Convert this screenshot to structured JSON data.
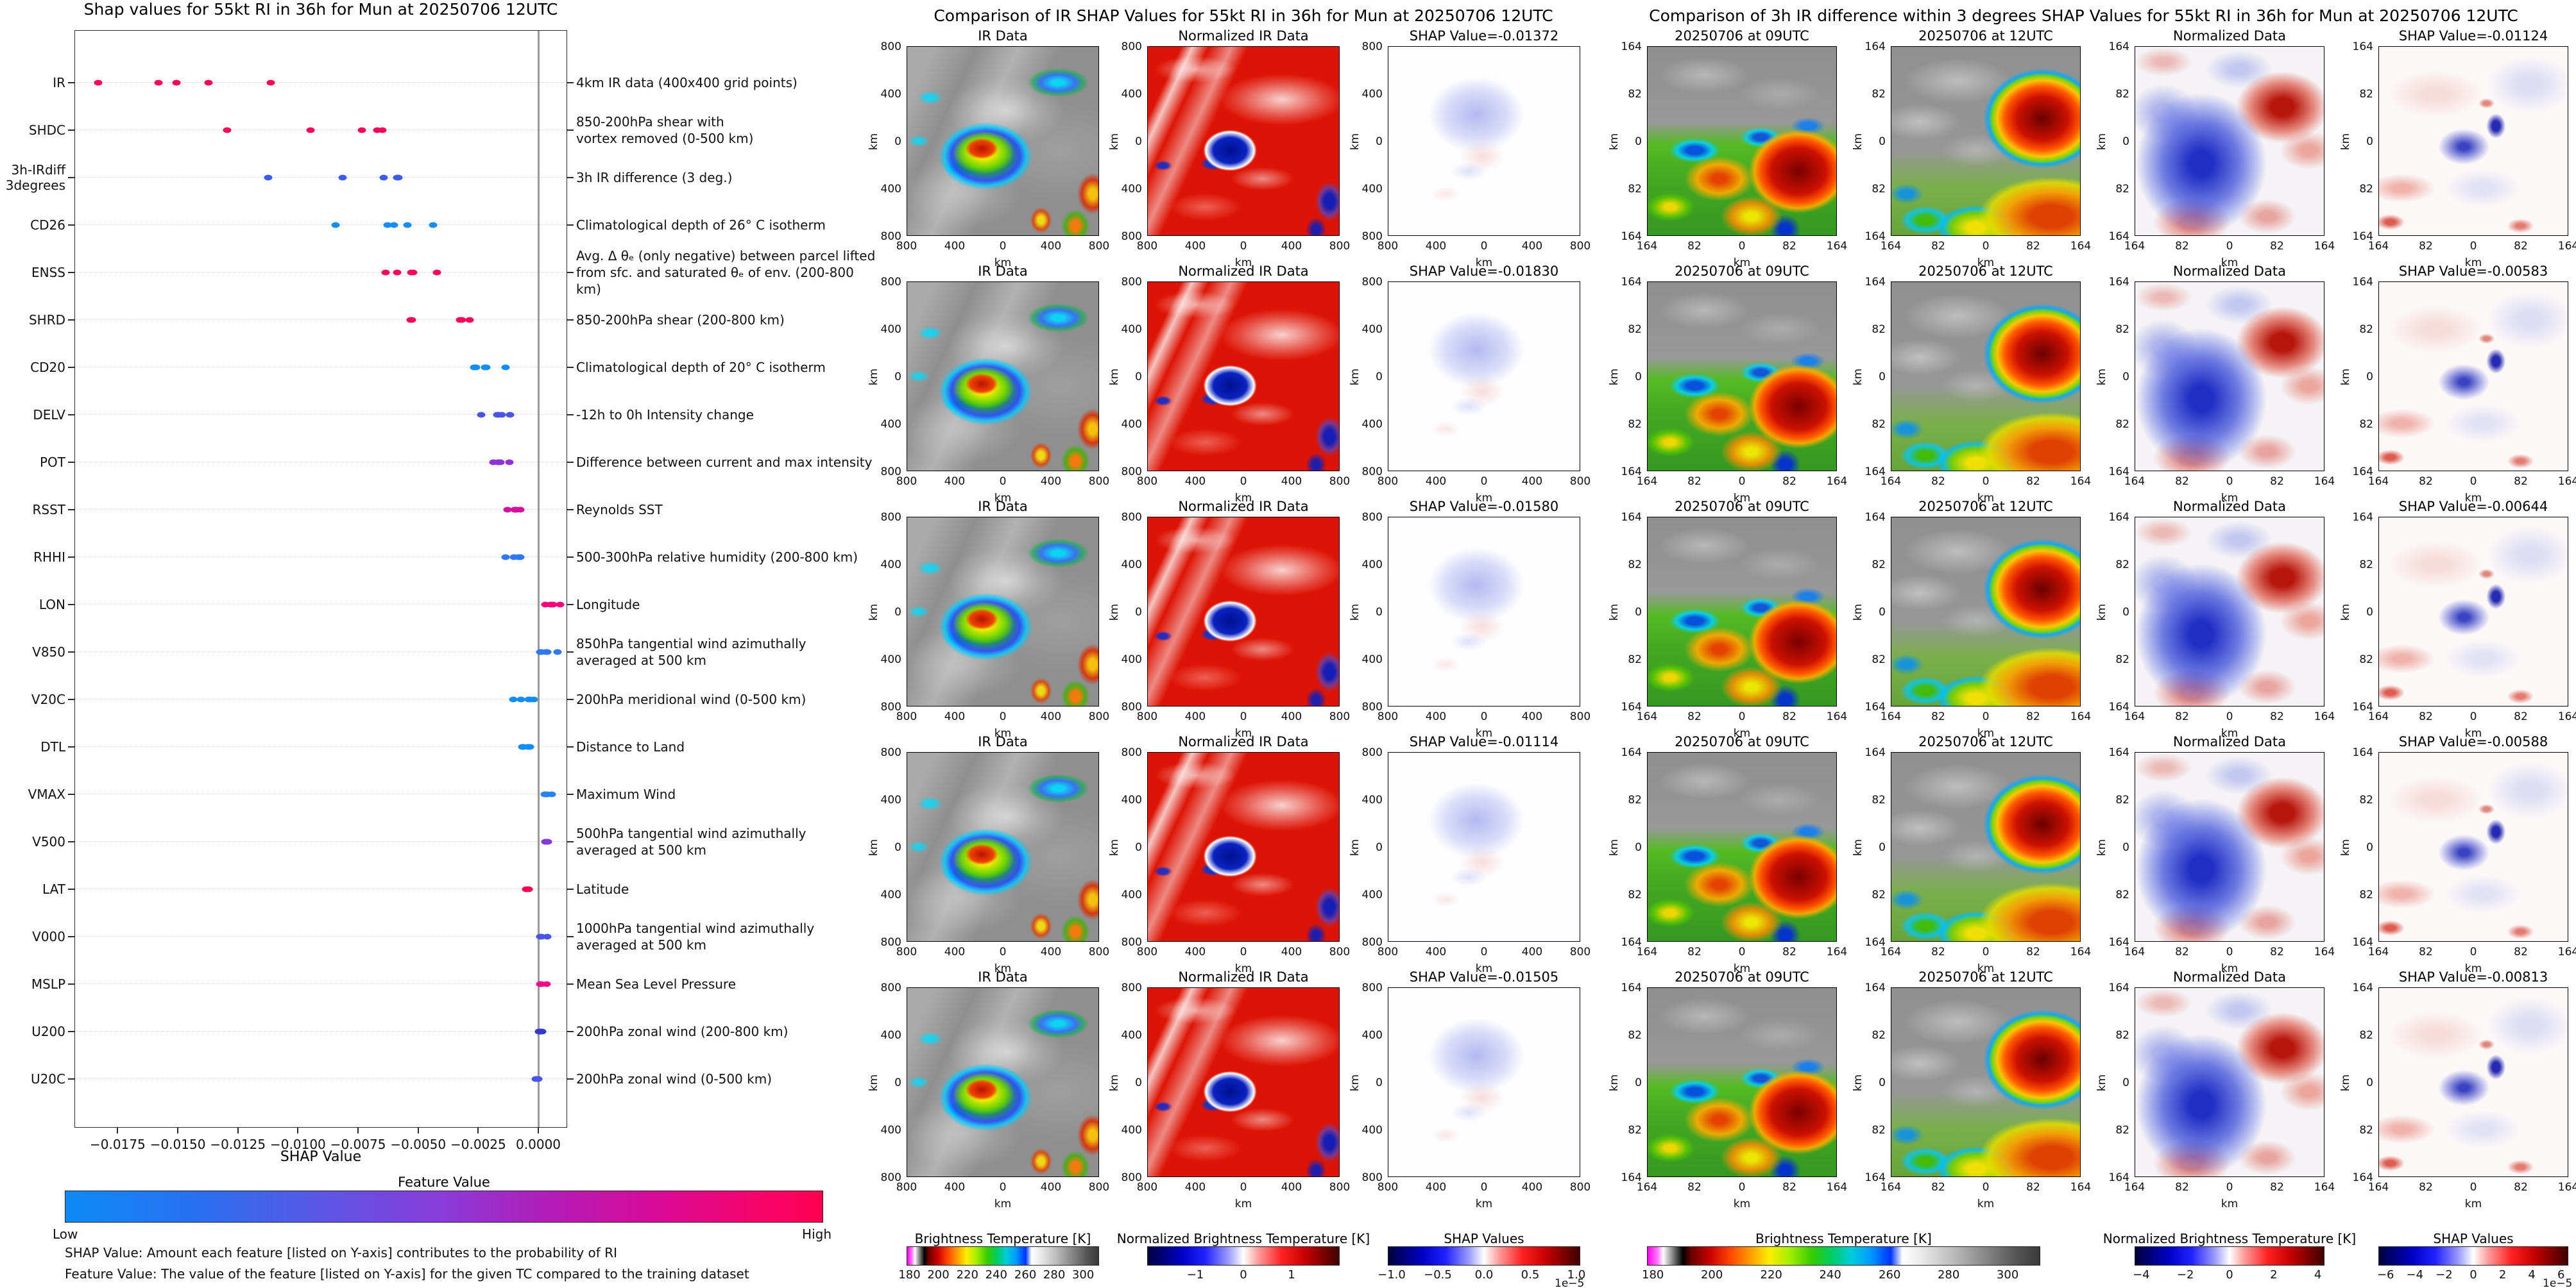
{
  "chart_data": [
    {
      "type": "scatter",
      "title": "Shap values for 55kt RI in 36h for Mun at 20250706 12UTC",
      "xlabel": "SHAP Value",
      "xlim": [
        -0.0193,
        0.0012
      ],
      "zero_line": 0,
      "x_ticks": [
        {
          "label": "−0.0175",
          "value": -0.0175
        },
        {
          "label": "−0.0150",
          "value": -0.015
        },
        {
          "label": "−0.0125",
          "value": -0.0125
        },
        {
          "label": "−0.0100",
          "value": -0.01
        },
        {
          "label": "−0.0075",
          "value": -0.0075
        },
        {
          "label": "−0.0050",
          "value": -0.005
        },
        {
          "label": "−0.0025",
          "value": -0.0025
        },
        {
          "label": "0.0000",
          "value": 0
        }
      ],
      "features": [
        {
          "name": "IR",
          "desc": "4km IR data (400x400 grid points)",
          "color": "#f8055e",
          "shap_values": [
            -0.0183,
            -0.0158,
            -0.01505,
            -0.01372,
            -0.01114
          ]
        },
        {
          "name": "SHDC",
          "desc": "850-200hPa shear with\nvortex removed (0-500 km)",
          "color": "#f8055e",
          "shap_values": [
            -0.01295,
            -0.00947,
            -0.00733,
            -0.00669,
            -0.00648
          ]
        },
        {
          "name": "3h-IRdiff\n3degrees",
          "desc": "3h IR difference (3 deg.)",
          "color": "#3d5bee",
          "shap_values": [
            -0.01124,
            -0.00813,
            -0.00644,
            -0.00588,
            -0.00583
          ]
        },
        {
          "name": "CD26",
          "desc": "Climatological depth of 26° C isotherm",
          "color": "#148df9",
          "shap_values": [
            -0.00844,
            -0.00627,
            -0.006,
            -0.00545,
            -0.00437
          ]
        },
        {
          "name": "ENSS",
          "desc": "Avg. Δ θₑ (only negative) between parcel lifted\nfrom sfc. and saturated θₑ of env. (200-800 km)",
          "color": "#f8055e",
          "shap_values": [
            -0.00635,
            -0.00588,
            -0.00529,
            -0.00521,
            -0.00421
          ]
        },
        {
          "name": "SHRD",
          "desc": "850-200hPa shear (200-800 km)",
          "color": "#f8055e",
          "shap_values": [
            -0.0053,
            -0.00527,
            -0.00325,
            -0.00318,
            -0.00286
          ]
        },
        {
          "name": "CD20",
          "desc": "Climatological depth of 20° C isotherm",
          "color": "#148df9",
          "shap_values": [
            -0.00267,
            -0.00259,
            -0.00222,
            -0.00217,
            -0.00135
          ]
        },
        {
          "name": "DELV",
          "desc": "-12h to 0h Intensity change",
          "color": "#4a55e8",
          "shap_values": [
            -0.00237,
            -0.00171,
            -0.00165,
            -0.00151,
            -0.00117
          ]
        },
        {
          "name": "POT",
          "desc": "Difference between current and max intensity",
          "color": "#9032d8",
          "shap_values": [
            -0.00186,
            -0.00168,
            -0.00163,
            -0.00158,
            -0.00121
          ]
        },
        {
          "name": "RSST",
          "desc": "Reynolds SST",
          "color": "#d60f9d",
          "shap_values": [
            -0.00127,
            -0.00098,
            -0.00094,
            -0.0009,
            -0.00074
          ]
        },
        {
          "name": "RHHI",
          "desc": "500-300hPa relative humidity (200-800 km)",
          "color": "#2e78f2",
          "shap_values": [
            -0.00135,
            -0.00101,
            -0.00082,
            -0.00077,
            -0.00074
          ]
        },
        {
          "name": "LON",
          "desc": "Longitude",
          "color": "#f5067c",
          "shap_values": [
            0.00029,
            0.0005,
            0.00056,
            0.00062,
            0.0009
          ]
        },
        {
          "name": "V850",
          "desc": "850hPa tangential wind azimuthally\naveraged at 500 km",
          "color": "#2e78f2",
          "shap_values": [
            9e-05,
            0.00012,
            0.00031,
            0.00036,
            0.00081
          ]
        },
        {
          "name": "V20C",
          "desc": "200hPa meridional wind (0-500 km)",
          "color": "#148df9",
          "shap_values": [
            -0.00105,
            -0.00071,
            -0.0004,
            -0.00036,
            -0.00018
          ]
        },
        {
          "name": "DTL",
          "desc": "Distance to Land",
          "color": "#148df9",
          "shap_values": [
            -0.00067,
            -0.00064,
            -0.00061,
            -0.00044,
            -0.00034
          ]
        },
        {
          "name": "VMAX",
          "desc": "Maximum Wind",
          "color": "#2b80f4",
          "shap_values": [
            0.00026,
            0.00029,
            0.00032,
            0.00037,
            0.00056
          ]
        },
        {
          "name": "V500",
          "desc": "500hPa tangential wind azimuthally\naveraged at 500 km",
          "color": "#8138dd",
          "shap_values": [
            0.00028,
            0.00032,
            0.00036,
            0.0004
          ]
        },
        {
          "name": "LAT",
          "desc": "Latitude",
          "color": "#fa0556",
          "shap_values": [
            -0.00051,
            -0.00047,
            -0.00043,
            -0.0004
          ]
        },
        {
          "name": "V000",
          "desc": "1000hPa tangential wind azimuthally\naveraged at 500 km",
          "color": "#4a55e8",
          "shap_values": [
            8e-05,
            0.00011,
            0.00014,
            0.00038
          ]
        },
        {
          "name": "MSLP",
          "desc": "Mean Sea Level Pressure",
          "color": "#ef0a8c",
          "shap_values": [
            7e-05,
            0.0001,
            0.00013,
            0.00035
          ]
        },
        {
          "name": "U200",
          "desc": "200hPa zonal wind (200-800 km)",
          "color": "#3336cf",
          "shap_values": [
            3e-05,
            6e-05,
            0.0001,
            0.00015
          ]
        },
        {
          "name": "U20C",
          "desc": "200hPa zonal wind (0-500 km)",
          "color": "#4a55e8",
          "shap_values": [
            -0.00012,
            -8e-05,
            -3e-05,
            0
          ]
        }
      ],
      "colorbar": {
        "title": "Feature Value",
        "low_label": "Low",
        "high_label": "High",
        "low_color": "#008bfb",
        "high_color": "#ff0051"
      },
      "footnotes": [
        "SHAP Value: Amount each feature [listed on Y-axis] contributes to the probability of RI",
        "Feature Value: The value of the feature [listed on Y-axis] for the given TC compared to the training dataset"
      ]
    },
    {
      "type": "heatmap",
      "title": "Comparison of IR SHAP Values for 55kt RI in 36h for Mun at 20250706 12UTC",
      "columns": [
        {
          "title": "IR Data",
          "kind": "ir"
        },
        {
          "title": "Normalized IR Data",
          "kind": "norm_ir"
        },
        {
          "title": "",
          "kind": "shap_m"
        }
      ],
      "rows": [
        {
          "shap_label": "SHAP Value=-0.01372"
        },
        {
          "shap_label": "SHAP Value=-0.01830"
        },
        {
          "shap_label": "SHAP Value=-0.01580"
        },
        {
          "shap_label": "SHAP Value=-0.01114"
        },
        {
          "shap_label": "SHAP Value=-0.01505"
        }
      ],
      "shap_values": [
        -0.01372,
        -0.0183,
        -0.0158,
        -0.01114,
        -0.01505
      ],
      "axis": {
        "ticks": [
          "800",
          "400",
          "0",
          "400",
          "800"
        ],
        "label": "km"
      },
      "colorbars": [
        {
          "title": "Brightness Temperature [K]",
          "kind": "bt",
          "ticks": [
            {
              "label": "180",
              "pos": 0.015
            },
            {
              "label": "200",
              "pos": 0.165
            },
            {
              "label": "220",
              "pos": 0.316
            },
            {
              "label": "240",
              "pos": 0.466
            },
            {
              "label": "260",
              "pos": 0.617
            },
            {
              "label": "280",
              "pos": 0.767
            },
            {
              "label": "300",
              "pos": 0.917
            }
          ]
        },
        {
          "title": "Normalized Brightness Temperature [K]",
          "kind": "seismic",
          "ticks": [
            {
              "label": "−1",
              "pos": 0.25
            },
            {
              "label": "0",
              "pos": 0.5
            },
            {
              "label": "1",
              "pos": 0.75
            }
          ]
        },
        {
          "title": "SHAP Values",
          "kind": "seismic",
          "exp": "1e−5",
          "ticks": [
            {
              "label": "−1.0",
              "pos": 0.02
            },
            {
              "label": "−0.5",
              "pos": 0.26
            },
            {
              "label": "0.0",
              "pos": 0.5
            },
            {
              "label": "0.5",
              "pos": 0.74
            },
            {
              "label": "1.0",
              "pos": 0.98
            }
          ]
        }
      ]
    },
    {
      "type": "heatmap",
      "title": "Comparison of 3h IR difference within 3 degrees SHAP Values for 55kt RI in 36h for Mun at 20250706 12UTC",
      "columns": [
        {
          "title": "20250706 at 09UTC",
          "kind": "ir09"
        },
        {
          "title": "20250706 at 12UTC",
          "kind": "ir12"
        },
        {
          "title": "Normalized Data",
          "kind": "norm_data"
        },
        {
          "title": "",
          "kind": "shap_r"
        }
      ],
      "rows": [
        {
          "shap_label": "SHAP Value=-0.01124"
        },
        {
          "shap_label": "SHAP Value=-0.00583"
        },
        {
          "shap_label": "SHAP Value=-0.00644"
        },
        {
          "shap_label": "SHAP Value=-0.00588"
        },
        {
          "shap_label": "SHAP Value=-0.00813"
        }
      ],
      "shap_values": [
        -0.01124,
        -0.00583,
        -0.00644,
        -0.00588,
        -0.00813
      ],
      "axis": {
        "ticks": [
          "164",
          "82",
          "0",
          "82",
          "164"
        ],
        "label": "km"
      },
      "colorbars": [
        {
          "title": "Brightness Temperature [K]",
          "kind": "bt",
          "ticks": [
            {
              "label": "180",
              "pos": 0.015
            },
            {
              "label": "200",
              "pos": 0.165
            },
            {
              "label": "220",
              "pos": 0.316
            },
            {
              "label": "240",
              "pos": 0.466
            },
            {
              "label": "260",
              "pos": 0.617
            },
            {
              "label": "280",
              "pos": 0.767
            },
            {
              "label": "300",
              "pos": 0.917
            }
          ]
        },
        {
          "title": "Normalized Brightness Temperature [K]",
          "kind": "seismic",
          "ticks": [
            {
              "label": "−4",
              "pos": 0.035
            },
            {
              "label": "−2",
              "pos": 0.2675
            },
            {
              "label": "0",
              "pos": 0.5
            },
            {
              "label": "2",
              "pos": 0.7325
            },
            {
              "label": "4",
              "pos": 0.965
            }
          ]
        },
        {
          "title": "SHAP Values",
          "kind": "seismic",
          "exp": "1e−5",
          "ticks": [
            {
              "label": "−6",
              "pos": 0.038
            },
            {
              "label": "−4",
              "pos": 0.192
            },
            {
              "label": "−2",
              "pos": 0.346
            },
            {
              "label": "0",
              "pos": 0.5
            },
            {
              "label": "2",
              "pos": 0.654
            },
            {
              "label": "4",
              "pos": 0.808
            },
            {
              "label": "6",
              "pos": 0.962
            }
          ]
        }
      ]
    }
  ]
}
